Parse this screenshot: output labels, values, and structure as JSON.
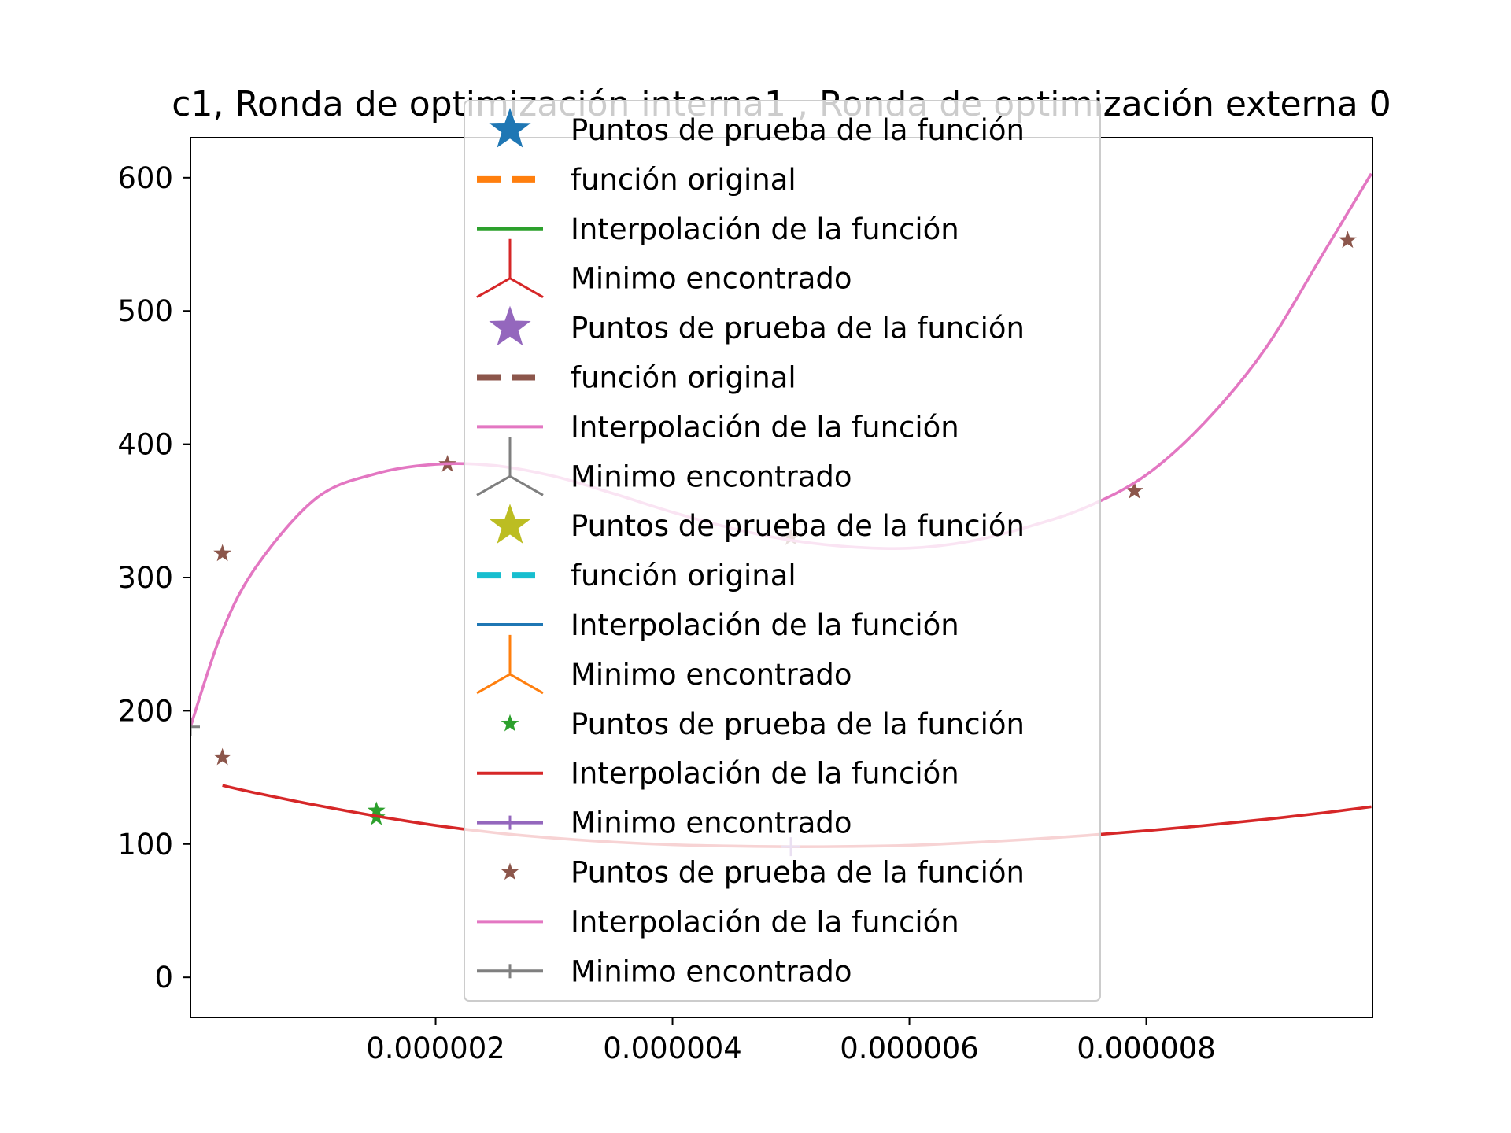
{
  "chart_data": {
    "type": "line",
    "title": "c1, Ronda de optimización interna1 , Ronda de optimización externa 0",
    "xlabel": "",
    "ylabel": "",
    "xlim": [
      -7e-08,
      9.91e-06
    ],
    "ylim": [
      -30,
      630
    ],
    "x_ticks": [
      2e-06,
      4e-06,
      6e-06,
      8e-06
    ],
    "x_tick_labels": [
      "0.000002",
      "0.000004",
      "0.000006",
      "0.000008"
    ],
    "y_ticks": [
      0,
      100,
      200,
      300,
      400,
      500,
      600
    ],
    "y_tick_labels": [
      "0",
      "100",
      "200",
      "300",
      "400",
      "500",
      "600"
    ],
    "grid": false,
    "legend_placement": "upper center",
    "series": [
      {
        "name": "Puntos de prueba de la función",
        "kind": "scatter",
        "marker": "star",
        "color": "#2ca02c",
        "x": [
          1.5e-06,
          1.5e-06
        ],
        "y": [
          125,
          120
        ]
      },
      {
        "name": "Interpolación de la función",
        "kind": "line",
        "color": "#d62728",
        "x": [
          2e-07,
          5e-07,
          1e-06,
          1.5e-06,
          2e-06,
          2.5e-06,
          3e-06,
          3.5e-06,
          4e-06,
          4.5e-06,
          5e-06,
          5.5e-06,
          6e-06,
          6.5e-06,
          7e-06,
          7.5e-06,
          8e-06,
          8.5e-06,
          9e-06,
          9.5e-06,
          9.9e-06
        ],
        "y": [
          144,
          138,
          129,
          121,
          114,
          108.5,
          104.5,
          101.5,
          99.5,
          98.5,
          98,
          98.2,
          99,
          101,
          103.5,
          106.5,
          110,
          114,
          118.5,
          123.5,
          128
        ]
      },
      {
        "name": "Minimo encontrado",
        "kind": "marker",
        "marker": "plus",
        "color": "#9467bd",
        "x": [
          5e-06
        ],
        "y": [
          98
        ]
      },
      {
        "name": "Puntos de prueba de la función",
        "kind": "scatter",
        "marker": "star",
        "color": "#8c564b",
        "x": [
          2e-07,
          2e-07,
          2.1e-06,
          5e-06,
          7.9e-06,
          9.7e-06
        ],
        "y": [
          318,
          165,
          385,
          330,
          365,
          553
        ]
      },
      {
        "name": "Interpolación de la función",
        "kind": "line",
        "color": "#e377c2",
        "x": [
          -7e-08,
          2e-07,
          5e-07,
          1e-06,
          1.5e-06,
          2e-06,
          2.5e-06,
          3e-06,
          3.5e-06,
          4e-06,
          4.5e-06,
          5e-06,
          5.5e-06,
          6e-06,
          6.5e-06,
          7e-06,
          7.5e-06,
          8e-06,
          8.5e-06,
          9e-06,
          9.5e-06,
          9.9e-06
        ],
        "y": [
          188,
          260,
          310,
          360,
          378,
          385,
          384,
          376,
          363,
          349,
          337,
          328,
          323,
          322,
          327,
          338,
          353,
          377,
          417,
          471,
          544,
          603
        ]
      },
      {
        "name": "Minimo encontrado",
        "kind": "marker",
        "marker": "plus",
        "color": "#7f7f7f",
        "x": [
          -7e-08
        ],
        "y": [
          188
        ]
      }
    ],
    "legend_entries": [
      {
        "label": "Puntos de prueba de la función",
        "glyph": "bigstar",
        "color": "#1f77b4"
      },
      {
        "label": "función original",
        "glyph": "dashed",
        "color": "#ff7f0e"
      },
      {
        "label": "Interpolación de la función",
        "glyph": "line",
        "color": "#2ca02c"
      },
      {
        "label": "Minimo encontrado",
        "glyph": "tri",
        "color": "#d62728"
      },
      {
        "label": "Puntos de prueba de la función",
        "glyph": "bigstar",
        "color": "#9467bd"
      },
      {
        "label": "función original",
        "glyph": "dashed",
        "color": "#8c564b"
      },
      {
        "label": "Interpolación de la función",
        "glyph": "line",
        "color": "#e377c2"
      },
      {
        "label": "Minimo encontrado",
        "glyph": "tri",
        "color": "#7f7f7f"
      },
      {
        "label": "Puntos de prueba de la función",
        "glyph": "bigstar",
        "color": "#bcbd22"
      },
      {
        "label": "función original",
        "glyph": "dashed",
        "color": "#17becf"
      },
      {
        "label": "Interpolación de la función",
        "glyph": "line",
        "color": "#1f77b4"
      },
      {
        "label": "Minimo encontrado",
        "glyph": "tri",
        "color": "#ff7f0e"
      },
      {
        "label": "Puntos de prueba de la función",
        "glyph": "smallstar",
        "color": "#2ca02c"
      },
      {
        "label": "Interpolación de la función",
        "glyph": "line",
        "color": "#d62728"
      },
      {
        "label": "Minimo encontrado",
        "glyph": "plusline",
        "color": "#9467bd"
      },
      {
        "label": "Puntos de prueba de la función",
        "glyph": "smallstar",
        "color": "#8c564b"
      },
      {
        "label": "Interpolación de la función",
        "glyph": "line",
        "color": "#e377c2"
      },
      {
        "label": "Minimo encontrado",
        "glyph": "plusline",
        "color": "#7f7f7f"
      }
    ]
  }
}
